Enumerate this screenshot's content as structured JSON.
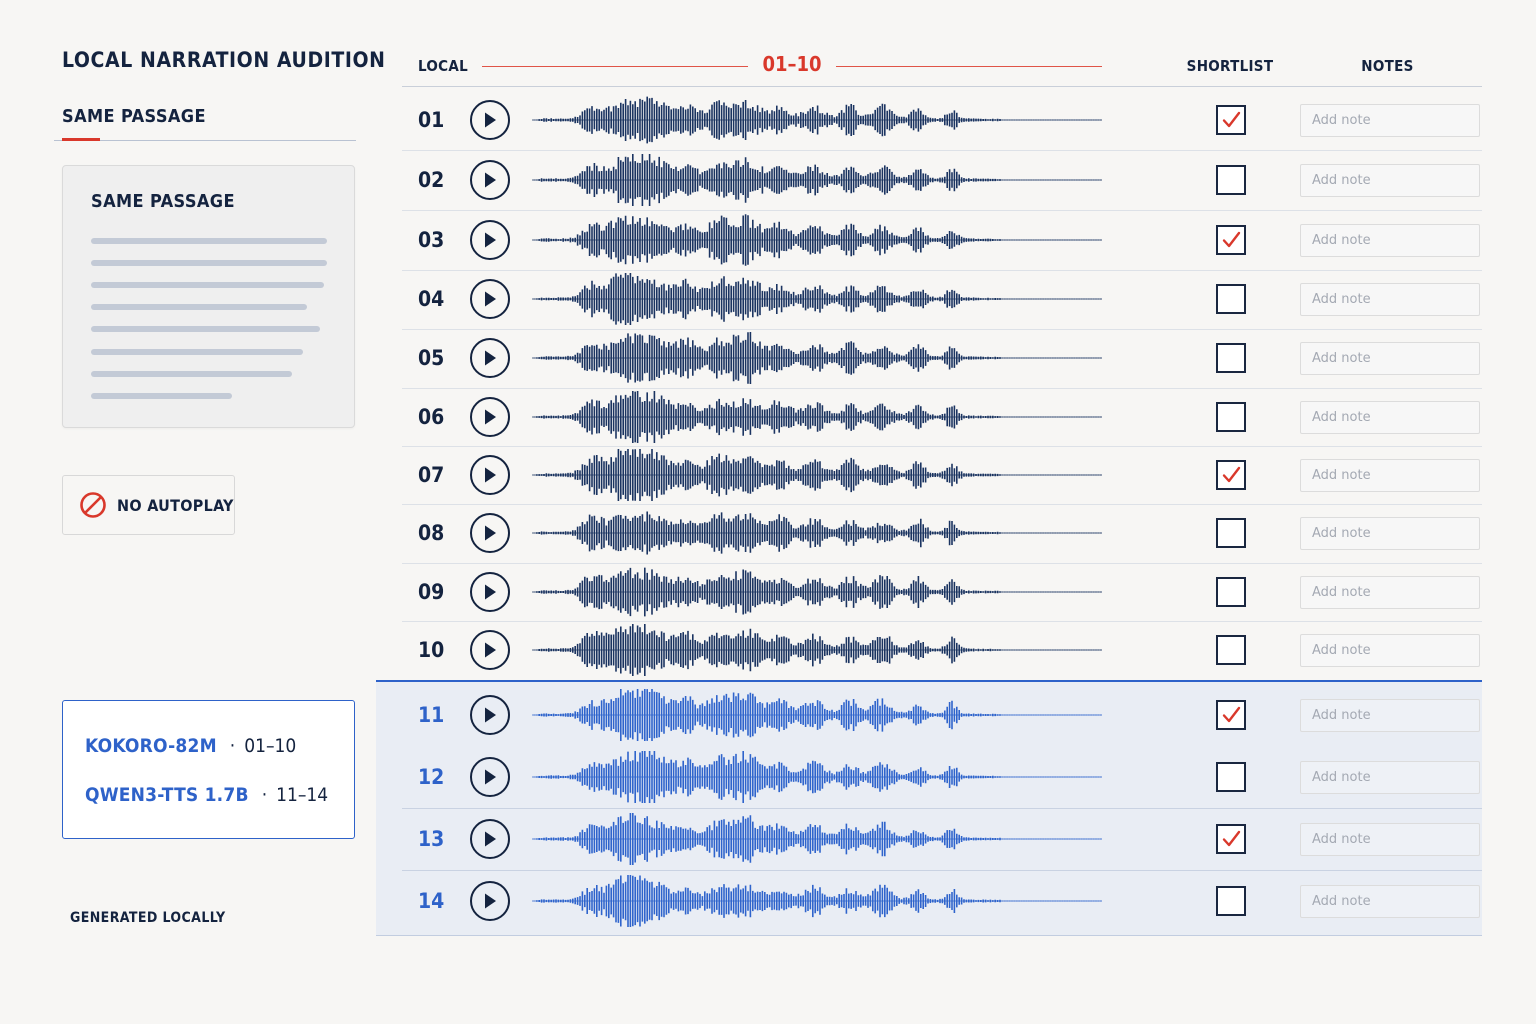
{
  "app": {
    "title": "LOCAL NARRATION AUDITION"
  },
  "sidebar": {
    "tab_label": "SAME PASSAGE",
    "passage_card": {
      "title": "SAME PASSAGE"
    },
    "autoplay": {
      "label": "NO AUTOPLAY",
      "icon": "prohibited-icon"
    },
    "models": [
      {
        "name": "KOKORO-82M",
        "separator": "·",
        "range": "01–10"
      },
      {
        "name": "QWEN3-TTS 1.7B",
        "separator": "·",
        "range": "11–14"
      }
    ],
    "footer": "GENERATED LOCALLY"
  },
  "header": {
    "local_label": "LOCAL",
    "range_label": "01–10",
    "shortlist_label": "SHORTLIST",
    "notes_label": "NOTES"
  },
  "rows": [
    {
      "id": "01",
      "shortlisted": true,
      "model": "kokoro",
      "note_placeholder": "Add note",
      "note_value": ""
    },
    {
      "id": "02",
      "shortlisted": false,
      "model": "kokoro",
      "note_placeholder": "Add note",
      "note_value": ""
    },
    {
      "id": "03",
      "shortlisted": true,
      "model": "kokoro",
      "note_placeholder": "Add note",
      "note_value": ""
    },
    {
      "id": "04",
      "shortlisted": false,
      "model": "kokoro",
      "note_placeholder": "Add note",
      "note_value": ""
    },
    {
      "id": "05",
      "shortlisted": false,
      "model": "kokoro",
      "note_placeholder": "Add note",
      "note_value": ""
    },
    {
      "id": "06",
      "shortlisted": false,
      "model": "kokoro",
      "note_placeholder": "Add note",
      "note_value": ""
    },
    {
      "id": "07",
      "shortlisted": true,
      "model": "kokoro",
      "note_placeholder": "Add note",
      "note_value": ""
    },
    {
      "id": "08",
      "shortlisted": false,
      "model": "kokoro",
      "note_placeholder": "Add note",
      "note_value": ""
    },
    {
      "id": "09",
      "shortlisted": false,
      "model": "kokoro",
      "note_placeholder": "Add note",
      "note_value": ""
    },
    {
      "id": "10",
      "shortlisted": false,
      "model": "kokoro",
      "note_placeholder": "Add note",
      "note_value": ""
    },
    {
      "id": "11",
      "shortlisted": true,
      "model": "qwen",
      "note_placeholder": "Add note",
      "note_value": ""
    },
    {
      "id": "12",
      "shortlisted": false,
      "model": "qwen",
      "note_placeholder": "Add note",
      "note_value": ""
    },
    {
      "id": "13",
      "shortlisted": true,
      "model": "qwen",
      "note_placeholder": "Add note",
      "note_value": ""
    },
    {
      "id": "14",
      "shortlisted": false,
      "model": "qwen",
      "note_placeholder": "Add note",
      "note_value": ""
    }
  ],
  "icons": {
    "play": "play-icon",
    "check": "checkmark-icon",
    "waveform": "waveform-icon"
  },
  "colors": {
    "accent_red": "#d9382b",
    "navy": "#14233f",
    "qwen_blue": "#2e62c9",
    "qwen_band": "#e9edf4",
    "wave_kokoro": "#1b3461",
    "wave_qwen": "#2f64cc"
  }
}
